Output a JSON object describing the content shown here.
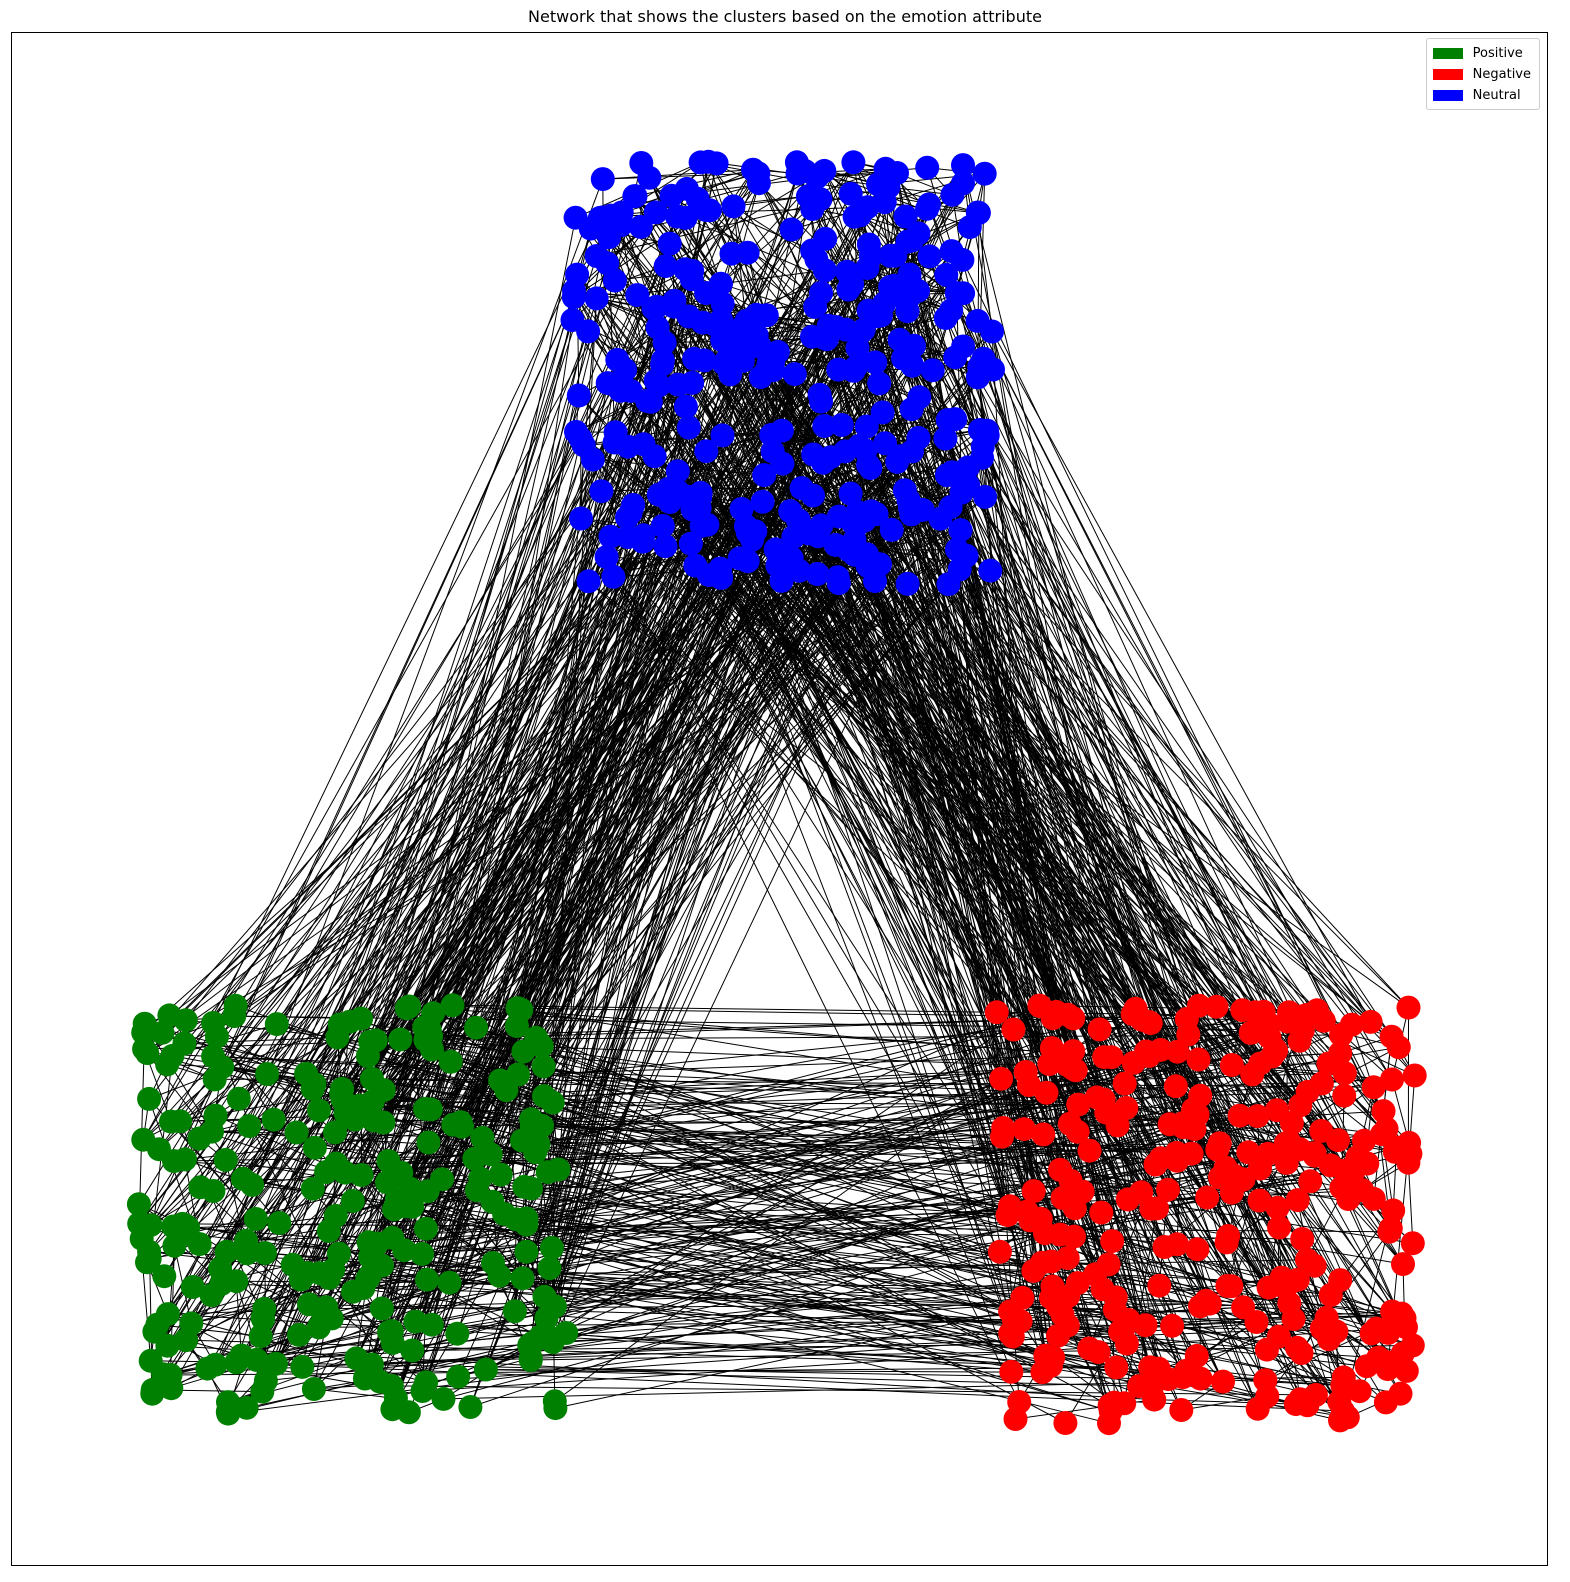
{
  "title": "Network that shows the clusters based on the emotion attribute",
  "legend": [
    {
      "label": "Positive",
      "color": "#008000"
    },
    {
      "label": "Negative",
      "color": "#ff0000"
    },
    {
      "label": "Neutral",
      "color": "#0000ff"
    }
  ],
  "edge_color": "#000000",
  "chart_data": {
    "type": "network",
    "title": "Network that shows the clusters based on the emotion attribute",
    "clusters": [
      {
        "name": "Positive",
        "color": "#008000"
      },
      {
        "name": "Negative",
        "color": "#ff0000"
      },
      {
        "name": "Neutral",
        "color": "#0000ff"
      }
    ],
    "legend_position": "upper right",
    "axes_visible": false
  }
}
